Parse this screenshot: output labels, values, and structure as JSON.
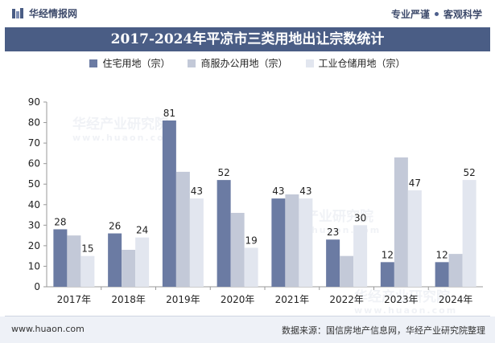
{
  "header": {
    "brand": "华经情报网",
    "tagline_left": "专业严谨",
    "tagline_right": "客观科学"
  },
  "title": "2017-2024年平凉市三类用地出让宗数统计",
  "watermark": {
    "text": "华经产业研究院",
    "url": "www.huaon.com"
  },
  "footer": {
    "website": "www.huaon.com",
    "source": "数据来源：国信房地产信息网，华经产业研究院整理"
  },
  "colors": {
    "title_bg": "#4a5d85",
    "series": [
      "#6b7ba3",
      "#c3c9d8",
      "#e2e6ef"
    ]
  },
  "chart_data": {
    "type": "bar",
    "title": "2017-2024年平凉市三类用地出让宗数统计",
    "categories": [
      "2017年",
      "2018年",
      "2019年",
      "2020年",
      "2021年",
      "2022年",
      "2023年",
      "2024年"
    ],
    "series": [
      {
        "name": "住宅用地（宗）",
        "values": [
          28,
          26,
          81,
          52,
          43,
          23,
          12,
          12
        ]
      },
      {
        "name": "商服办公用地（宗）",
        "values": [
          25,
          18,
          56,
          36,
          45,
          15,
          63,
          16
        ]
      },
      {
        "name": "工业仓储用地（宗）",
        "values": [
          15,
          24,
          43,
          19,
          43,
          30,
          47,
          52
        ]
      }
    ],
    "labeled_series": [
      0,
      2
    ],
    "ylim": [
      0,
      90
    ],
    "yticks": [
      0,
      10,
      20,
      30,
      40,
      50,
      60,
      70,
      80,
      90
    ],
    "xlabel": "",
    "ylabel": "",
    "grid": false,
    "legend_position": "top"
  }
}
